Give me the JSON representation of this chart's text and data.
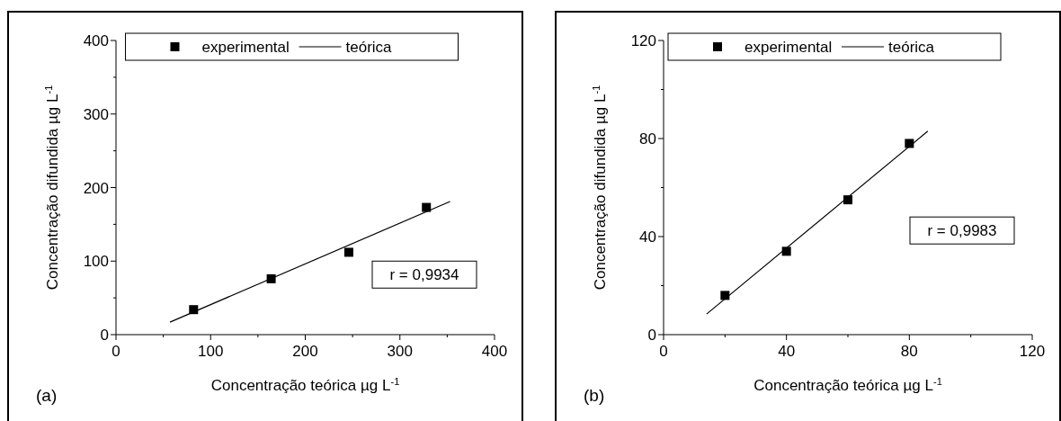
{
  "chart_data": [
    {
      "type": "scatter",
      "xlabel": "Concentração teórica µg L$^{-1}$",
      "ylabel": "Concentração difundida µg L$^{-1}$",
      "series": [
        {
          "name": "experimental",
          "color": "#000000",
          "marker": "square",
          "x": [
            82,
            164,
            246,
            328
          ],
          "values": [
            34,
            76,
            112,
            173
          ]
        },
        {
          "name": "teórica",
          "type": "line",
          "color": "#000000",
          "x": [
            57,
            353
          ],
          "values": [
            17,
            181
          ]
        }
      ],
      "xlim": [
        0,
        400
      ],
      "xticks": [
        0,
        {
          "value": 50,
          "label": null
        },
        100,
        {
          "value": 150,
          "label": null
        },
        200,
        {
          "value": 250,
          "label": null
        },
        300,
        {
          "value": 350,
          "label": null
        },
        400
      ],
      "ylim": [
        0,
        400
      ],
      "yticks": [
        0,
        {
          "value": 50,
          "label": null
        },
        100,
        {
          "value": 150,
          "label": null
        },
        200,
        {
          "value": 250,
          "label": null
        },
        300,
        {
          "value": 350,
          "label": null
        },
        400
      ],
      "line_style": "solid",
      "legend": "top",
      "grid": false,
      "annotations": [
        "r = 0,9934",
        "(a)"
      ]
    },
    {
      "type": "scatter",
      "xlabel": "Concentração teórica µg L$^{-1}$",
      "ylabel": "Concentração difundida µg L$^{-1}$",
      "series": [
        {
          "name": "experimental",
          "color": "#000000",
          "marker": "square",
          "x": [
            20,
            40,
            60,
            80
          ],
          "values": [
            16,
            34,
            55,
            78
          ]
        },
        {
          "name": "teórica",
          "type": "line",
          "color": "#000000",
          "x": [
            14,
            86
          ],
          "values": [
            8.4,
            83
          ]
        }
      ],
      "xlim": [
        0,
        120
      ],
      "xticks": [
        0,
        {
          "value": 20,
          "label": null
        },
        40,
        {
          "value": 60,
          "label": null
        },
        80,
        {
          "value": 100,
          "label": null
        },
        120
      ],
      "ylim": [
        0,
        120
      ],
      "yticks": [
        0,
        {
          "value": 20,
          "label": null
        },
        40,
        {
          "value": 60,
          "label": null
        },
        80,
        {
          "value": 100,
          "label": null
        },
        120
      ],
      "line_style": "solid",
      "legend": "top",
      "grid": false,
      "annotations": [
        "r = 0,9983",
        "(b)"
      ]
    }
  ]
}
